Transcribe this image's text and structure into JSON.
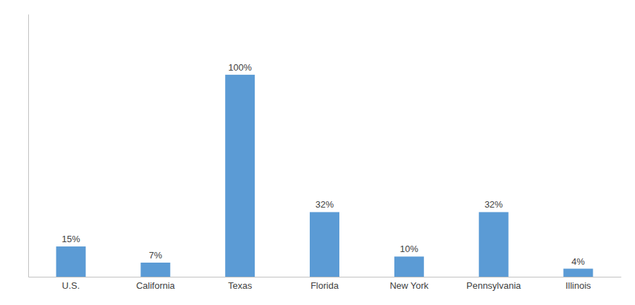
{
  "chart_data": {
    "type": "bar",
    "categories": [
      "U.S.",
      "California",
      "Texas",
      "Florida",
      "New York",
      "Pennsylvania",
      "Illinois"
    ],
    "values": [
      15,
      7,
      100,
      32,
      10,
      32,
      4
    ],
    "value_labels": [
      "15%",
      "7%",
      "100%",
      "32%",
      "10%",
      "32%",
      "4%"
    ],
    "data_labels": true,
    "color": "#5b9bd5",
    "ylim": [
      0,
      130
    ],
    "tick_labels": "x",
    "grid": false
  }
}
